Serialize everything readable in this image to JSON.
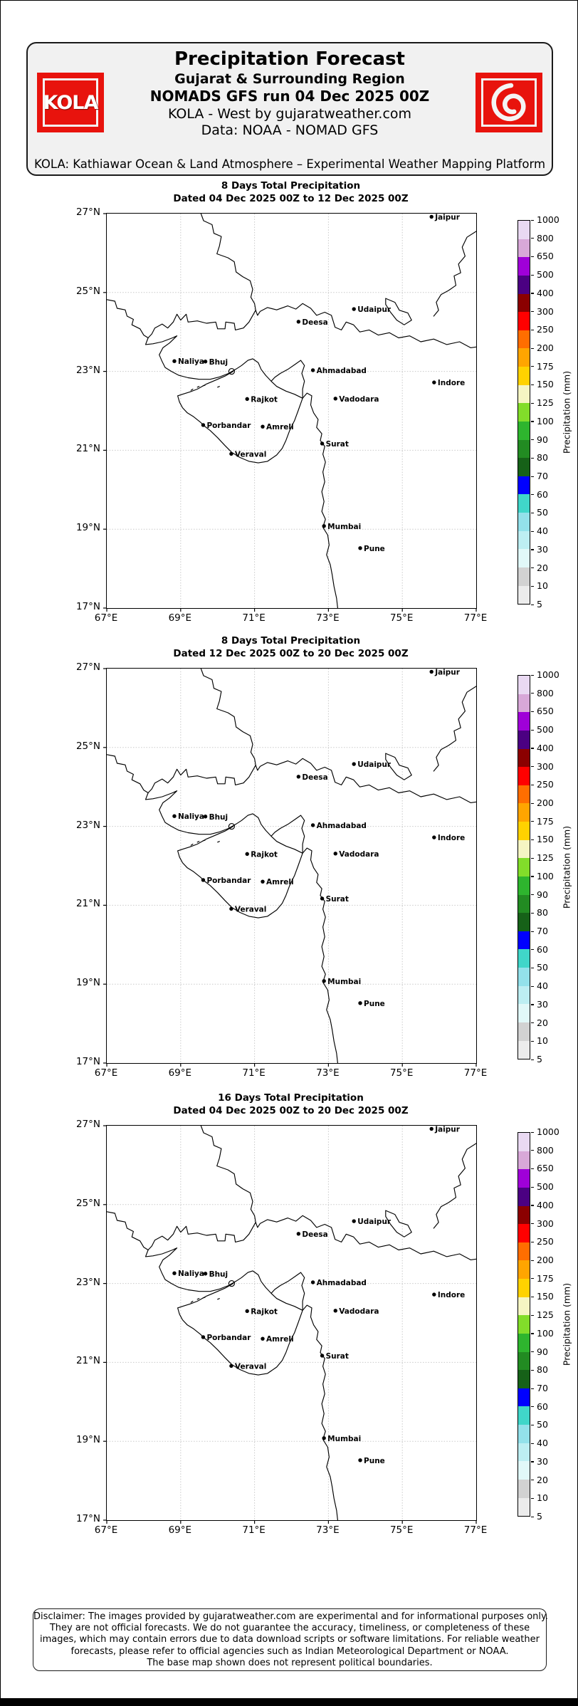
{
  "header": {
    "brand": "KOLA",
    "title": "Precipitation Forecast",
    "sub1": "Gujarat & Surrounding Region",
    "sub2": "NOMADS GFS run 04 Dec 2025 00Z",
    "sub3": "KOLA - West by gujaratweather.com",
    "sub4": "Data: NOAA - NOMAD GFS",
    "banner": "KOLA: Kathiawar Ocean & Land Atmosphere – Experimental Weather Mapping Platform",
    "brand_red": "#e8130d"
  },
  "panels": [
    {
      "title": "8 Days Total Precipitation",
      "dated": "Dated 04 Dec 2025 00Z to 12 Dec 2025 00Z"
    },
    {
      "title": "8 Days Total Precipitation",
      "dated": "Dated 12 Dec 2025 00Z to 20 Dec 2025 00Z"
    },
    {
      "title": "16 Days Total Precipitation",
      "dated": "Dated 04 Dec 2025 00Z to 20 Dec 2025 00Z"
    }
  ],
  "axes": {
    "lon_min": 67,
    "lon_max": 77,
    "lat_min": 17,
    "lat_max": 27,
    "lon_ticks": [
      {
        "v": 67,
        "label": "67°E"
      },
      {
        "v": 69,
        "label": "69°E"
      },
      {
        "v": 71,
        "label": "71°E"
      },
      {
        "v": 73,
        "label": "73°E"
      },
      {
        "v": 75,
        "label": "75°E"
      },
      {
        "v": 77,
        "label": "77°E"
      }
    ],
    "lat_ticks": [
      {
        "v": 27,
        "label": "27°N"
      },
      {
        "v": 25,
        "label": "25°N"
      },
      {
        "v": 23,
        "label": "23°N"
      },
      {
        "v": 21,
        "label": "21°N"
      },
      {
        "v": 19,
        "label": "19°N"
      },
      {
        "v": 17,
        "label": "17°N"
      }
    ]
  },
  "cities": [
    {
      "name": "Jaipur",
      "lon": 75.79,
      "lat": 26.92
    },
    {
      "name": "Udaipur",
      "lon": 73.69,
      "lat": 24.58
    },
    {
      "name": "Deesa",
      "lon": 72.19,
      "lat": 24.26
    },
    {
      "name": "Naliya",
      "lon": 68.83,
      "lat": 23.26
    },
    {
      "name": "Bhuj",
      "lon": 69.67,
      "lat": 23.25
    },
    {
      "name": "Ahmadabad",
      "lon": 72.58,
      "lat": 23.03
    },
    {
      "name": "Indore",
      "lon": 75.86,
      "lat": 22.72
    },
    {
      "name": "Rajkot",
      "lon": 70.8,
      "lat": 22.3
    },
    {
      "name": "Vadodara",
      "lon": 73.19,
      "lat": 22.31
    },
    {
      "name": "Porbandar",
      "lon": 69.61,
      "lat": 21.64
    },
    {
      "name": "Amreli",
      "lon": 71.22,
      "lat": 21.6
    },
    {
      "name": "Surat",
      "lon": 72.83,
      "lat": 21.17
    },
    {
      "name": "Veraval",
      "lon": 70.37,
      "lat": 20.91
    },
    {
      "name": "Mumbai",
      "lon": 72.88,
      "lat": 19.08
    },
    {
      "name": "Pune",
      "lon": 73.86,
      "lat": 18.52
    }
  ],
  "colorbar": {
    "label": "Precipitation (mm)",
    "levels": [
      5,
      10,
      20,
      30,
      40,
      50,
      60,
      70,
      80,
      90,
      100,
      125,
      150,
      175,
      200,
      250,
      300,
      400,
      500,
      650,
      800,
      1000
    ],
    "colors_bottom_to_top": [
      "#ececec",
      "#d2d2d2",
      "#e1f8f8",
      "#bdeef2",
      "#93e1ea",
      "#40d6c9",
      "#0000ff",
      "#166118",
      "#228b22",
      "#2eb52e",
      "#82dd2a",
      "#f5f5c3",
      "#ffd200",
      "#ffa500",
      "#ff6e00",
      "#ff0000",
      "#8b0000",
      "#4b0082",
      "#9f00d8",
      "#d8a8d8",
      "#e9d9f2"
    ]
  },
  "footer": {
    "lines": [
      "Disclaimer: The images provided by gujaratweather.com are experimental and for informational purposes only.",
      "They are not official forecasts. We do not guarantee the accuracy, timeliness, or completeness of these",
      "images, which may contain errors due to data download scripts or software limitations. For reliable weather",
      "forecasts, please refer to official agencies such as Indian Meteorological Department or NOAA.",
      "The base map shown does not represent political boundaries."
    ]
  },
  "basemap": {
    "circles": [
      {
        "lon": 70.38,
        "lat": 23.0,
        "r": 4
      }
    ],
    "polylines": [
      [
        [
          69.55,
          27
        ],
        [
          69.62,
          26.82
        ],
        [
          69.85,
          26.72
        ],
        [
          69.9,
          26.5
        ],
        [
          70.1,
          26.42
        ],
        [
          70.05,
          26.18
        ],
        [
          69.98,
          25.98
        ],
        [
          70.28,
          25.88
        ],
        [
          70.45,
          25.78
        ],
        [
          70.5,
          25.52
        ],
        [
          70.68,
          25.4
        ],
        [
          70.88,
          25.3
        ],
        [
          70.95,
          25.08
        ],
        [
          70.9,
          24.88
        ],
        [
          71.0,
          24.72
        ],
        [
          71.03,
          24.55
        ]
      ],
      [
        [
          71.03,
          24.55
        ],
        [
          71.08,
          24.42
        ],
        [
          71.15,
          24.52
        ],
        [
          71.35,
          24.62
        ],
        [
          71.6,
          24.56
        ],
        [
          71.9,
          24.66
        ],
        [
          72.12,
          24.58
        ],
        [
          72.3,
          24.72
        ],
        [
          72.52,
          24.6
        ],
        [
          72.68,
          24.42
        ],
        [
          72.9,
          24.5
        ],
        [
          73.08,
          24.42
        ],
        [
          73.18,
          24.12
        ],
        [
          73.35,
          24.05
        ],
        [
          73.48,
          24.25
        ],
        [
          73.68,
          24.18
        ],
        [
          73.85,
          24.0
        ],
        [
          74.1,
          24.05
        ],
        [
          74.35,
          23.92
        ],
        [
          74.65,
          23.98
        ],
        [
          74.9,
          23.85
        ],
        [
          75.2,
          23.9
        ],
        [
          75.5,
          23.75
        ],
        [
          75.85,
          23.82
        ],
        [
          76.2,
          23.68
        ],
        [
          76.55,
          23.75
        ],
        [
          76.85,
          23.6
        ],
        [
          77,
          23.62
        ]
      ],
      [
        [
          67,
          24.82
        ],
        [
          67.22,
          24.78
        ],
        [
          67.28,
          24.6
        ],
        [
          67.5,
          24.56
        ],
        [
          67.55,
          24.4
        ],
        [
          67.72,
          24.32
        ],
        [
          67.68,
          24.18
        ],
        [
          67.9,
          24.08
        ],
        [
          68.0,
          23.92
        ],
        [
          68.12,
          23.85
        ],
        [
          68.22,
          23.95
        ],
        [
          68.3,
          24.1
        ],
        [
          68.5,
          24.2
        ],
        [
          68.65,
          24.1
        ],
        [
          68.8,
          24.25
        ],
        [
          68.9,
          24.45
        ],
        [
          69.0,
          24.3
        ],
        [
          69.15,
          24.45
        ],
        [
          69.2,
          24.25
        ],
        [
          69.45,
          24.28
        ],
        [
          69.7,
          24.22
        ],
        [
          69.95,
          24.25
        ],
        [
          70.0,
          24.08
        ],
        [
          70.2,
          24.08
        ],
        [
          70.22,
          24.25
        ],
        [
          70.45,
          24.22
        ],
        [
          70.48,
          24.05
        ],
        [
          70.7,
          24.1
        ],
        [
          70.85,
          24.25
        ],
        [
          71.03,
          24.55
        ]
      ],
      [
        [
          68.12,
          23.85
        ],
        [
          68.05,
          23.68
        ],
        [
          68.25,
          23.7
        ],
        [
          68.5,
          23.75
        ],
        [
          68.78,
          23.85
        ],
        [
          68.9,
          23.9
        ],
        [
          68.7,
          23.72
        ],
        [
          68.52,
          23.6
        ],
        [
          68.42,
          23.42
        ],
        [
          68.5,
          23.25
        ],
        [
          68.58,
          23.1
        ],
        [
          68.75,
          23.0
        ],
        [
          68.95,
          22.9
        ],
        [
          69.2,
          22.84
        ],
        [
          69.5,
          22.8
        ],
        [
          69.8,
          22.8
        ],
        [
          70.05,
          22.86
        ],
        [
          70.3,
          22.95
        ],
        [
          70.5,
          23.06
        ],
        [
          70.65,
          23.15
        ],
        [
          70.82,
          23.28
        ],
        [
          70.95,
          23.32
        ],
        [
          71.1,
          23.22
        ],
        [
          71.18,
          23.05
        ],
        [
          71.3,
          22.9
        ],
        [
          71.45,
          22.75
        ],
        [
          71.6,
          22.62
        ],
        [
          71.85,
          22.5
        ],
        [
          72.08,
          22.42
        ],
        [
          72.3,
          22.32
        ]
      ],
      [
        [
          70.42,
          23.0
        ],
        [
          70.2,
          22.88
        ],
        [
          69.95,
          22.78
        ],
        [
          69.7,
          22.68
        ],
        [
          69.45,
          22.55
        ],
        [
          69.25,
          22.48
        ],
        [
          69.05,
          22.42
        ],
        [
          68.92,
          22.38
        ],
        [
          68.97,
          22.22
        ],
        [
          69.05,
          22.08
        ],
        [
          69.18,
          21.95
        ],
        [
          69.35,
          21.85
        ],
        [
          69.55,
          21.7
        ],
        [
          69.62,
          21.63
        ],
        [
          69.8,
          21.5
        ],
        [
          70.0,
          21.32
        ],
        [
          70.2,
          21.12
        ],
        [
          70.38,
          20.95
        ],
        [
          70.6,
          20.82
        ],
        [
          70.85,
          20.72
        ],
        [
          71.1,
          20.68
        ],
        [
          71.35,
          20.72
        ],
        [
          71.6,
          20.88
        ],
        [
          71.75,
          21.05
        ],
        [
          71.85,
          21.25
        ],
        [
          71.95,
          21.5
        ],
        [
          72.08,
          21.75
        ],
        [
          72.18,
          22.0
        ],
        [
          72.3,
          22.32
        ]
      ],
      [
        [
          72.3,
          22.32
        ],
        [
          72.42,
          22.45
        ],
        [
          72.55,
          22.38
        ],
        [
          72.52,
          22.15
        ],
        [
          72.6,
          21.95
        ],
        [
          72.72,
          21.78
        ],
        [
          72.68,
          21.58
        ],
        [
          72.82,
          21.42
        ],
        [
          72.78,
          21.25
        ],
        [
          72.9,
          21.1
        ],
        [
          72.85,
          20.9
        ],
        [
          72.92,
          20.7
        ],
        [
          72.85,
          20.45
        ],
        [
          72.9,
          20.2
        ],
        [
          72.82,
          19.95
        ],
        [
          72.88,
          19.7
        ],
        [
          72.82,
          19.45
        ],
        [
          72.92,
          19.25
        ],
        [
          72.85,
          19.05
        ],
        [
          72.98,
          18.85
        ],
        [
          73.02,
          18.6
        ],
        [
          72.95,
          18.35
        ],
        [
          73.05,
          18.1
        ],
        [
          73.1,
          17.85
        ],
        [
          73.15,
          17.55
        ],
        [
          73.22,
          17.25
        ],
        [
          73.25,
          17.0
        ]
      ],
      [
        [
          77,
          26.55
        ],
        [
          76.75,
          26.4
        ],
        [
          76.62,
          26.15
        ],
        [
          76.7,
          25.92
        ],
        [
          76.52,
          25.72
        ],
        [
          76.58,
          25.5
        ],
        [
          76.4,
          25.42
        ],
        [
          76.45,
          25.18
        ],
        [
          76.25,
          25.05
        ],
        [
          76.05,
          24.95
        ],
        [
          75.92,
          24.75
        ],
        [
          75.98,
          24.55
        ],
        [
          75.85,
          24.4
        ]
      ],
      [
        [
          74.55,
          24.85
        ],
        [
          74.8,
          24.75
        ],
        [
          74.92,
          24.55
        ],
        [
          75.15,
          24.48
        ],
        [
          75.25,
          24.3
        ],
        [
          75.05,
          24.18
        ],
        [
          74.85,
          24.3
        ],
        [
          74.68,
          24.5
        ],
        [
          74.55,
          24.7
        ],
        [
          74.55,
          24.85
        ]
      ],
      [
        [
          71.45,
          22.75
        ],
        [
          71.55,
          22.85
        ],
        [
          71.7,
          22.95
        ],
        [
          71.9,
          23.05
        ],
        [
          72.1,
          23.18
        ],
        [
          72.25,
          23.28
        ],
        [
          72.35,
          23.15
        ],
        [
          72.28,
          22.95
        ],
        [
          72.35,
          22.75
        ],
        [
          72.3,
          22.55
        ],
        [
          72.3,
          22.32
        ]
      ],
      [
        [
          69.28,
          22.52
        ],
        [
          69.33,
          22.55
        ]
      ],
      [
        [
          69.45,
          22.6
        ],
        [
          69.5,
          22.62
        ]
      ],
      [
        [
          69.6,
          22.63
        ],
        [
          69.66,
          22.65
        ]
      ],
      [
        [
          70.0,
          22.6
        ],
        [
          70.05,
          22.62
        ]
      ]
    ]
  }
}
